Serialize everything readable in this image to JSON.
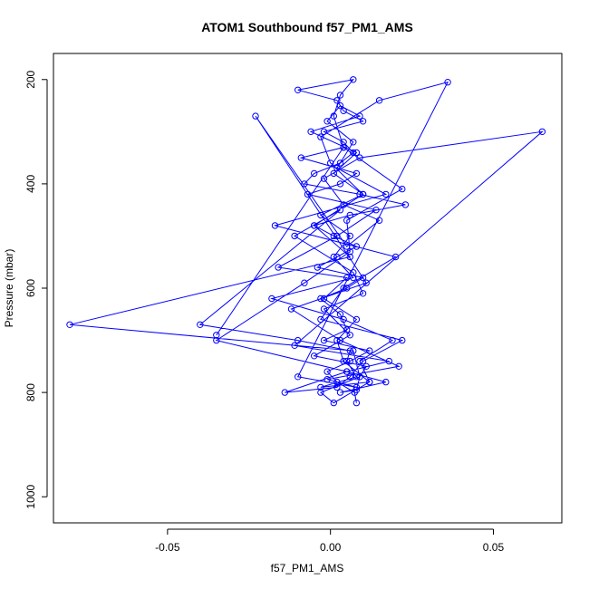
{
  "chart_data": {
    "type": "line",
    "title": "ATOM1 Southbound f57_PM1_AMS",
    "xlabel": "f57_PM1_AMS",
    "ylabel": "Pressure (mbar)",
    "xlim": [
      -0.085,
      0.071
    ],
    "ylim": [
      1050,
      150
    ],
    "y_reversed": true,
    "x_ticks": [
      {
        "value": -0.05,
        "label": "-0.05"
      },
      {
        "value": 0.0,
        "label": "0.00"
      },
      {
        "value": 0.05,
        "label": "0.05"
      }
    ],
    "y_ticks": [
      {
        "value": 200,
        "label": "200"
      },
      {
        "value": 400,
        "label": "400"
      },
      {
        "value": 600,
        "label": "600"
      },
      {
        "value": 800,
        "label": "800"
      },
      {
        "value": 1000,
        "label": "1000"
      }
    ],
    "grid": false,
    "line_color": "#0000ff",
    "marker": "open-circle",
    "series": [
      {
        "x": [
          0.008,
          0.0074,
          0.002,
          -0.001,
          0.006,
          0.012,
          -0.002,
          0.005,
          0.003,
          -0.003,
          0.005,
          0.01,
          -0.004,
          0.002,
          0.008,
          0.001,
          -0.005,
          0.006,
          0.023,
          0.009,
          -0.008,
          -0.005,
          0.003,
          0.007,
          0.004,
          -0.002,
          0.01,
          0.004,
          0.002,
          -0.01,
          0.007,
          0.003,
          0.001,
          0.004,
          0.022,
          0.005,
          0.006,
          -0.008,
          -0.035,
          0.005,
          0.017,
          0.003,
          0.008,
          0.009,
          0.011,
          -0.005,
          0.006,
          -0.002,
          0.01,
          0.007,
          -0.011,
          0.003,
          -0.04,
          -0.01,
          0.006,
          0.005,
          0.008,
          -0.003,
          0.012,
          0.009,
          0.019,
          0.004,
          -0.018,
          0.007,
          0.001,
          0.006,
          -0.003,
          0.01,
          0.001,
          0.008,
          -0.006,
          0.009,
          0.003,
          -0.001,
          0.007,
          0.002,
          0.017,
          -0.017,
          0.02,
          0.004,
          -0.003,
          0.022,
          0.01,
          0.006,
          0.002,
          -0.014,
          0.005,
          0.018,
          -0.011,
          0.065,
          0.009,
          -0.002,
          0.004,
          0.015,
          0.005,
          -0.023,
          0.011,
          -0.012,
          0.003,
          0.021,
          -0.001,
          0.008,
          -0.01,
          0.036,
          0.015,
          -0.003,
          0.0,
          0.01,
          -0.005,
          0.006,
          -0.08,
          0.007,
          0.009,
          -0.003,
          0.001,
          0.012,
          0.004,
          0.002,
          0.008,
          -0.002,
          0.005,
          -0.016,
          0.002,
          0.014,
          -0.007,
          0.003,
          0.008,
          -0.009,
          0.004,
          -0.035
        ],
        "y": [
          820,
          800,
          780,
          760,
          740,
          720,
          700,
          680,
          650,
          620,
          600,
          580,
          560,
          540,
          520,
          500,
          480,
          460,
          440,
          420,
          400,
          380,
          360,
          340,
          320,
          300,
          280,
          260,
          240,
          220,
          200,
          230,
          270,
          330,
          410,
          470,
          530,
          590,
          700,
          760,
          780,
          800,
          795,
          770,
          750,
          730,
          690,
          640,
          610,
          570,
          500,
          450,
          670,
          700,
          720,
          740,
          770,
          790,
          780,
          740,
          700,
          660,
          620,
          580,
          540,
          500,
          460,
          420,
          380,
          340,
          300,
          270,
          250,
          280,
          320,
          370,
          420,
          480,
          540,
          600,
          660,
          700,
          740,
          770,
          790,
          800,
          760,
          740,
          710,
          300,
          350,
          390,
          440,
          470,
          520,
          270,
          590,
          640,
          700,
          750,
          775,
          790,
          770,
          205,
          240,
          310,
          360,
          420,
          480,
          540,
          670,
          720,
          770,
          800,
          820,
          780,
          740,
          700,
          660,
          620,
          580,
          560,
          500,
          450,
          420,
          400,
          380,
          350,
          330,
          690
        ]
      }
    ]
  }
}
